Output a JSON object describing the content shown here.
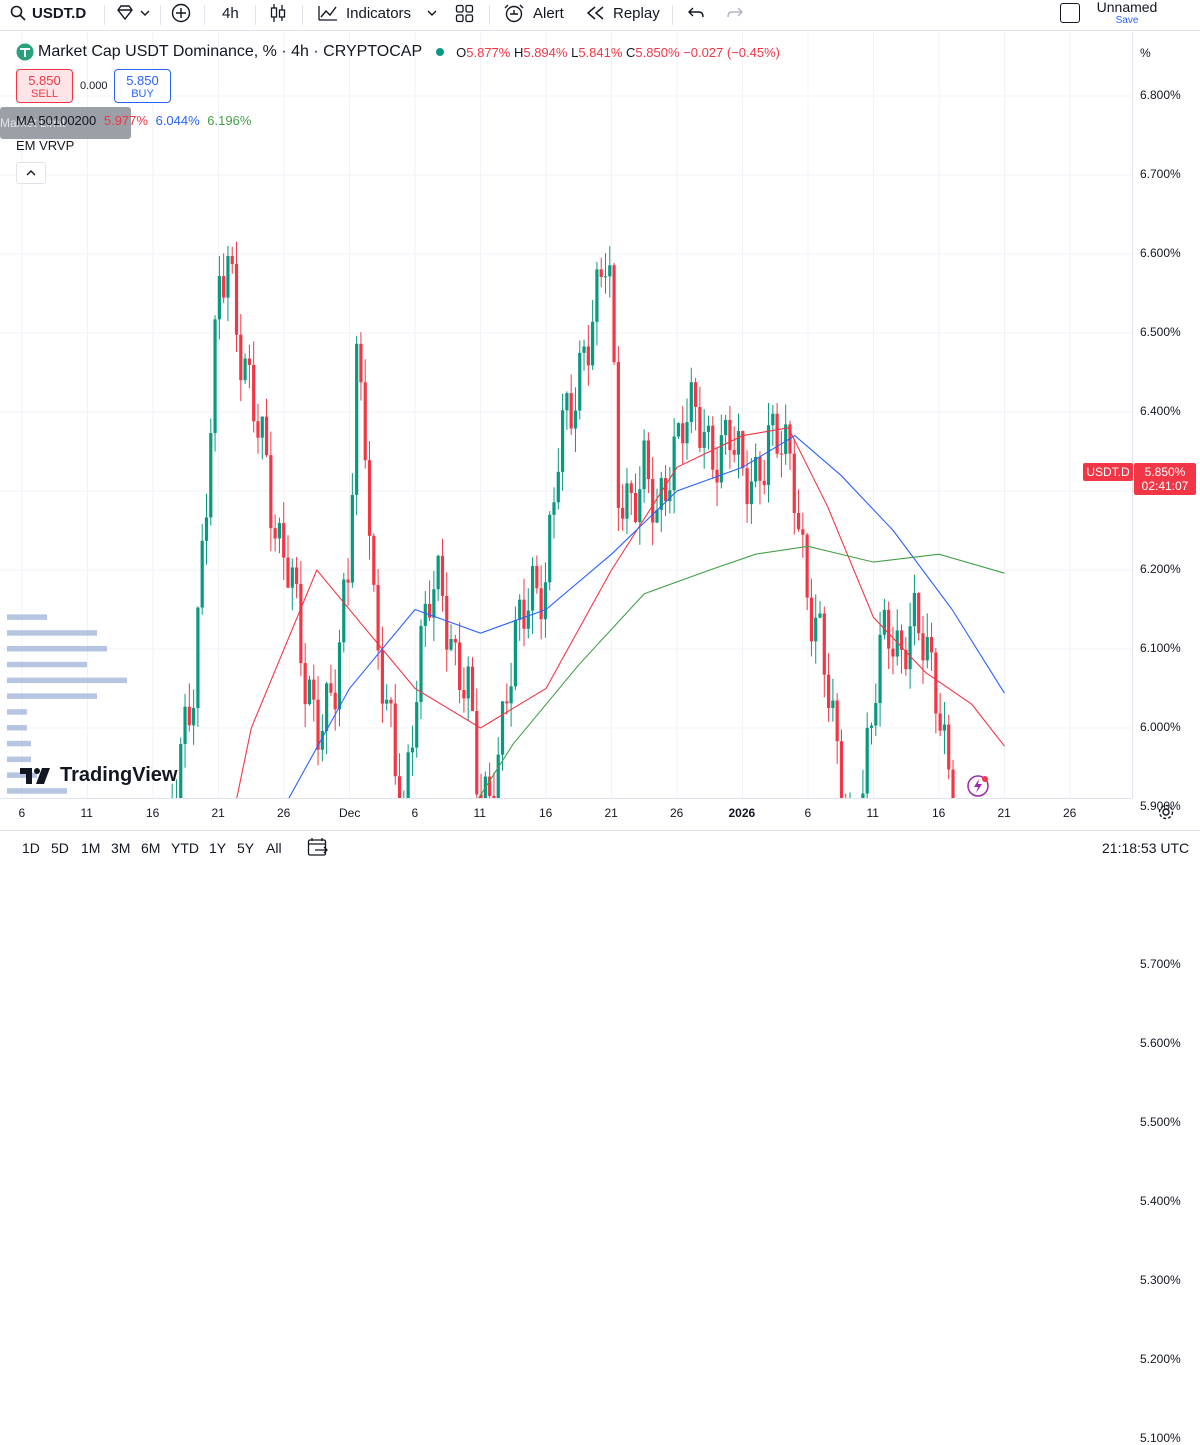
{
  "toolbar": {
    "symbol": "USDT.D",
    "interval": "4h",
    "indicators_label": "Indicators",
    "alert_label": "Alert",
    "replay_label": "Replay",
    "layout_name": "Unnamed",
    "save_label": "Save"
  },
  "legend": {
    "title": "Market Cap USDT Dominance, % · 4h · CRYPTOCAP",
    "o_label": "O",
    "o_value": "5.877%",
    "h_label": "H",
    "h_value": "5.894%",
    "l_label": "L",
    "l_value": "5.841%",
    "c_label": "C",
    "c_value": "5.850%",
    "change": "−0.027 (−0.45%)",
    "sell_price": "5.850",
    "sell_label": "SELL",
    "spread": "0.000",
    "buy_price": "5.850",
    "buy_label": "BUY",
    "ma_label": "MA 50100200",
    "ma_values": [
      "5.977%",
      "6.044%",
      "6.196%"
    ],
    "ghost_text": "Market  Limit",
    "ema_label": "EM VRVP",
    "collapse": "^"
  },
  "price_axis": {
    "unit": "%",
    "ticks": [
      "6.800%",
      "6.700%",
      "6.600%",
      "6.500%",
      "6.400%",
      "6.300%",
      "6.200%",
      "6.100%",
      "6.000%",
      "5.900%",
      "5.700%",
      "5.600%",
      "5.500%",
      "5.400%",
      "5.300%",
      "5.200%",
      "5.100%"
    ],
    "badge": "USDT.D",
    "current_price": "5.850%",
    "countdown": "02:41:07"
  },
  "time_axis": {
    "ticks": [
      "6",
      "11",
      "16",
      "21",
      "26",
      "Dec",
      "6",
      "11",
      "16",
      "21",
      "26",
      "2026",
      "6",
      "11",
      "16",
      "21",
      "26"
    ]
  },
  "bottom": {
    "ranges": [
      "1D",
      "5D",
      "1M",
      "3M",
      "6M",
      "YTD",
      "1Y",
      "5Y",
      "All"
    ],
    "clock": "21:18:53 UTC"
  },
  "logo_text": "TradingView",
  "colors": {
    "up": "#089981",
    "down": "#f23645",
    "ma50": "#f23645",
    "ma100": "#2962ff",
    "ma200": "#43a047",
    "vrvp": "#9eb1d7",
    "accent": "#2962ff"
  },
  "chart_data": {
    "type": "line",
    "title": "Market Cap USDT Dominance, % · 4h · CRYPTOCAP",
    "ylabel": "%",
    "ylim": [
      5.05,
      6.85
    ],
    "x_ticks": [
      "6",
      "11",
      "16",
      "21",
      "26",
      "Dec",
      "6",
      "11",
      "16",
      "21",
      "26",
      "2026",
      "6",
      "11",
      "16",
      "21",
      "26"
    ],
    "x_range": [
      0,
      16.8
    ],
    "series": [
      {
        "name": "USDT.D close",
        "points": [
          [
            0,
            5.6
          ],
          [
            0.35,
            5.47
          ],
          [
            0.6,
            5.5
          ],
          [
            0.85,
            5.4
          ],
          [
            1.0,
            5.27
          ],
          [
            1.1,
            5.22
          ],
          [
            1.3,
            5.31
          ],
          [
            1.45,
            5.4
          ],
          [
            1.6,
            5.55
          ],
          [
            1.8,
            5.7
          ],
          [
            2.0,
            5.75
          ],
          [
            2.2,
            5.8
          ],
          [
            2.4,
            5.98
          ],
          [
            2.6,
            6.05
          ],
          [
            2.8,
            6.25
          ],
          [
            3.0,
            6.55
          ],
          [
            3.15,
            6.62
          ],
          [
            3.3,
            6.5
          ],
          [
            3.5,
            6.4
          ],
          [
            3.7,
            6.35
          ],
          [
            3.9,
            6.25
          ],
          [
            4.1,
            6.2
          ],
          [
            4.3,
            6.05
          ],
          [
            4.5,
            6.02
          ],
          [
            4.8,
            6.05
          ],
          [
            5.0,
            6.2
          ],
          [
            5.1,
            6.48
          ],
          [
            5.25,
            6.38
          ],
          [
            5.4,
            6.1
          ],
          [
            5.6,
            6.0
          ],
          [
            5.8,
            5.88
          ],
          [
            6.0,
            6.05
          ],
          [
            6.2,
            6.15
          ],
          [
            6.4,
            6.18
          ],
          [
            6.6,
            6.1
          ],
          [
            6.8,
            6.05
          ],
          [
            7.0,
            5.88
          ],
          [
            7.2,
            5.94
          ],
          [
            7.4,
            6.05
          ],
          [
            7.6,
            6.12
          ],
          [
            7.8,
            6.18
          ],
          [
            8.0,
            6.2
          ],
          [
            8.2,
            6.35
          ],
          [
            8.4,
            6.4
          ],
          [
            8.6,
            6.5
          ],
          [
            8.8,
            6.55
          ],
          [
            8.95,
            6.6
          ],
          [
            9.1,
            6.3
          ],
          [
            9.3,
            6.3
          ],
          [
            9.5,
            6.32
          ],
          [
            9.7,
            6.25
          ],
          [
            9.9,
            6.35
          ],
          [
            10.1,
            6.4
          ],
          [
            10.3,
            6.38
          ],
          [
            10.5,
            6.35
          ],
          [
            10.8,
            6.38
          ],
          [
            11.0,
            6.3
          ],
          [
            11.2,
            6.32
          ],
          [
            11.4,
            6.38
          ],
          [
            11.6,
            6.35
          ],
          [
            11.8,
            6.3
          ],
          [
            12.0,
            6.18
          ],
          [
            12.2,
            6.1
          ],
          [
            12.4,
            5.98
          ],
          [
            12.6,
            5.88
          ],
          [
            12.8,
            5.88
          ],
          [
            13.0,
            6.02
          ],
          [
            13.2,
            6.15
          ],
          [
            13.4,
            6.1
          ],
          [
            13.6,
            6.12
          ],
          [
            13.8,
            6.1
          ],
          [
            14.0,
            6.05
          ],
          [
            14.2,
            5.9
          ],
          [
            14.4,
            5.78
          ],
          [
            14.55,
            5.75
          ],
          [
            14.7,
            5.82
          ],
          [
            14.85,
            5.87
          ],
          [
            15.0,
            5.85
          ]
        ]
      },
      {
        "name": "MA 50",
        "points": [
          [
            0.5,
            5.25
          ],
          [
            1.5,
            5.35
          ],
          [
            2.5,
            5.6
          ],
          [
            3.5,
            6.0
          ],
          [
            4.5,
            6.2
          ],
          [
            5.3,
            6.12
          ],
          [
            6.0,
            6.05
          ],
          [
            7.0,
            6.0
          ],
          [
            8.0,
            6.05
          ],
          [
            9.0,
            6.2
          ],
          [
            10.0,
            6.33
          ],
          [
            11.0,
            6.37
          ],
          [
            11.7,
            6.38
          ],
          [
            12.3,
            6.28
          ],
          [
            13.0,
            6.14
          ],
          [
            13.8,
            6.07
          ],
          [
            14.5,
            6.03
          ],
          [
            15.0,
            5.977
          ]
        ]
      },
      {
        "name": "MA 100",
        "points": [
          [
            0.2,
            5.05
          ],
          [
            1.0,
            5.1
          ],
          [
            2.0,
            5.3
          ],
          [
            3.0,
            5.6
          ],
          [
            4.0,
            5.9
          ],
          [
            5.0,
            6.05
          ],
          [
            6.0,
            6.15
          ],
          [
            7.0,
            6.12
          ],
          [
            8.0,
            6.15
          ],
          [
            9.0,
            6.22
          ],
          [
            10.0,
            6.3
          ],
          [
            11.0,
            6.33
          ],
          [
            11.8,
            6.37
          ],
          [
            12.5,
            6.32
          ],
          [
            13.3,
            6.25
          ],
          [
            14.2,
            6.15
          ],
          [
            15.0,
            6.044
          ]
        ]
      },
      {
        "name": "MA 200",
        "points": [
          [
            1.3,
            5.05
          ],
          [
            2.5,
            5.2
          ],
          [
            3.5,
            5.4
          ],
          [
            4.5,
            5.6
          ],
          [
            5.5,
            5.75
          ],
          [
            6.5,
            5.85
          ],
          [
            7.5,
            5.98
          ],
          [
            8.5,
            6.08
          ],
          [
            9.5,
            6.17
          ],
          [
            10.5,
            6.2
          ],
          [
            11.2,
            6.22
          ],
          [
            12.0,
            6.23
          ],
          [
            13.0,
            6.21
          ],
          [
            14.0,
            6.22
          ],
          [
            15.0,
            6.196
          ]
        ]
      },
      {
        "name": "Support level",
        "points": [
          [
            0,
            5.88
          ],
          [
            15.2,
            5.88
          ]
        ]
      },
      {
        "name": "Last price",
        "points": [
          [
            0,
            5.85
          ],
          [
            16.8,
            5.85
          ]
        ]
      }
    ],
    "volume_profile": {
      "price_levels": [
        6.14,
        6.12,
        6.1,
        6.08,
        6.06,
        6.04,
        6.02,
        6.0,
        5.98,
        5.96,
        5.94,
        5.92,
        5.9,
        5.88,
        5.86,
        5.84,
        5.82,
        5.8,
        5.78,
        5.76,
        5.74
      ],
      "relative_volume": [
        0.2,
        0.45,
        0.5,
        0.4,
        0.6,
        0.45,
        0.1,
        0.1,
        0.12,
        0.12,
        0.15,
        0.3,
        0.45,
        0.95,
        0.9,
        1.0,
        0.8,
        0.6,
        0.5,
        0.45,
        0.35
      ]
    }
  }
}
